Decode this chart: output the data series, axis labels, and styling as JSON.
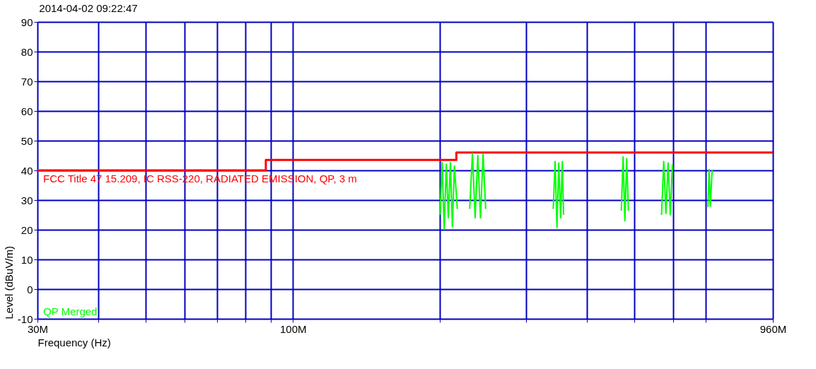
{
  "chart_data": {
    "type": "line",
    "title": "2014-04-02 09:22:47",
    "xlabel": "Frequency (Hz)",
    "ylabel": "Level (dBuV/m)",
    "log": "x",
    "xlim": [
      30,
      960
    ],
    "ylim": [
      -10,
      90
    ],
    "xticks": [
      {
        "value": 30,
        "label": "30M"
      },
      {
        "value": 40,
        "label": null
      },
      {
        "value": 50,
        "label": null
      },
      {
        "value": 60,
        "label": null
      },
      {
        "value": 70,
        "label": null
      },
      {
        "value": 80,
        "label": null
      },
      {
        "value": 90,
        "label": null
      },
      {
        "value": 100,
        "label": "100M"
      },
      {
        "value": 200,
        "label": null
      },
      {
        "value": 300,
        "label": null
      },
      {
        "value": 400,
        "label": null
      },
      {
        "value": 500,
        "label": null
      },
      {
        "value": 600,
        "label": null
      },
      {
        "value": 700,
        "label": null
      },
      {
        "value": 960,
        "label": "960M"
      }
    ],
    "yticks": [
      -10,
      0,
      10,
      20,
      30,
      40,
      50,
      60,
      70,
      80,
      90
    ],
    "grid": true,
    "legend": false,
    "series": [
      {
        "name": "FCC Title 47 15.209, IC RSS-220, RADIATED EMISSION, QP, 3 m",
        "type": "step",
        "color": "#ff0000",
        "x": [
          30,
          88,
          216,
          960
        ],
        "values": [
          40,
          43.5,
          46,
          46
        ]
      },
      {
        "name": "QP Merged",
        "color": "#00ff00",
        "x": [
          200,
          202,
          204,
          206,
          208,
          210,
          212,
          214,
          217,
          222,
          230,
          233,
          236,
          239,
          242,
          245,
          248,
          290,
          341,
          344,
          347,
          350,
          353,
          356,
          358,
          410,
          470,
          474,
          478,
          482,
          486,
          530,
          568,
          574,
          580,
          586,
          592,
          598,
          650,
          707,
          711,
          715,
          721
        ],
        "values": [
          25,
          42.6,
          20.2,
          42,
          24,
          42.6,
          21,
          41.5,
          27,
          null,
          27,
          45.7,
          24,
          45,
          24,
          45.5,
          27,
          null,
          27,
          43,
          20.7,
          42.5,
          24,
          43,
          25,
          null,
          26.4,
          44.5,
          23,
          44,
          26.4,
          null,
          25,
          43,
          25.5,
          42.5,
          25,
          42,
          null,
          27.7,
          40.3,
          28,
          40
        ]
      }
    ]
  }
}
